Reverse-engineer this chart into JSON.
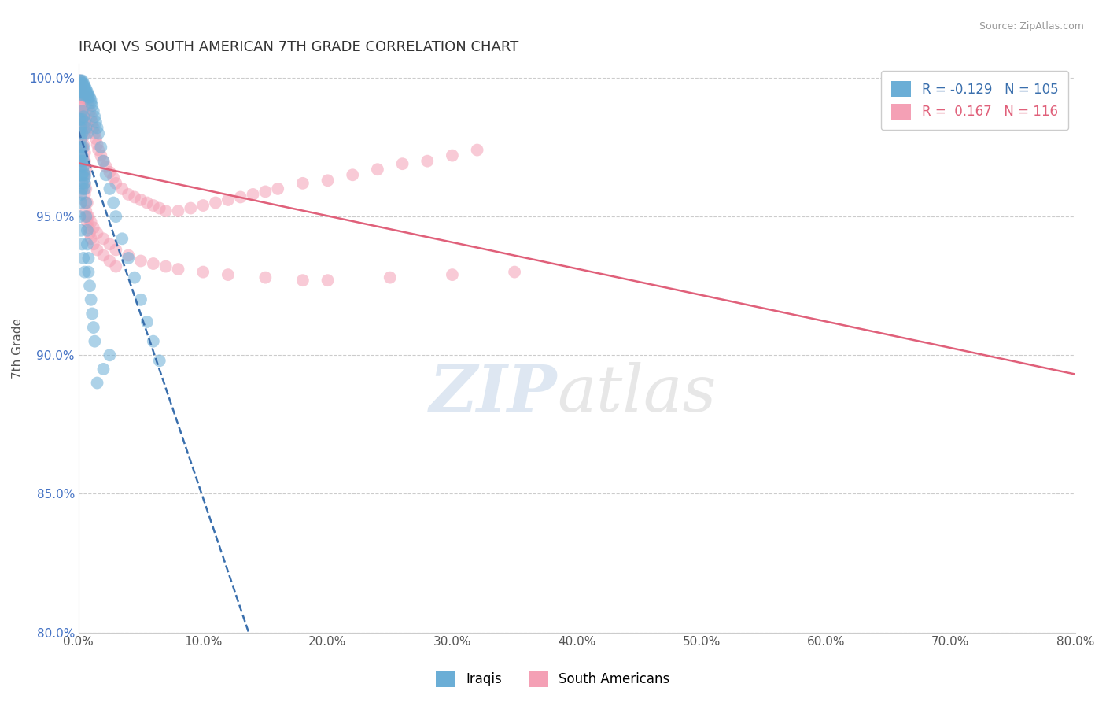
{
  "title": "IRAQI VS SOUTH AMERICAN 7TH GRADE CORRELATION CHART",
  "source_text": "Source: ZipAtlas.com",
  "ylabel": "7th Grade",
  "xlim": [
    0.0,
    0.8
  ],
  "ylim": [
    0.8,
    1.005
  ],
  "xticks": [
    0.0,
    0.1,
    0.2,
    0.3,
    0.4,
    0.5,
    0.6,
    0.7,
    0.8
  ],
  "xticklabels": [
    "0.0%",
    "10.0%",
    "20.0%",
    "30.0%",
    "40.0%",
    "50.0%",
    "60.0%",
    "70.0%",
    "80.0%"
  ],
  "yticks": [
    0.8,
    0.85,
    0.9,
    0.95,
    1.0
  ],
  "yticklabels": [
    "80.0%",
    "85.0%",
    "90.0%",
    "95.0%",
    "100.0%"
  ],
  "blue_color": "#6baed6",
  "pink_color": "#f4a0b5",
  "blue_line_color": "#3a6fad",
  "pink_line_color": "#e0607a",
  "legend_blue_R": "-0.129",
  "legend_blue_N": "105",
  "legend_pink_R": "0.167",
  "legend_pink_N": "116",
  "grid_color": "#cccccc",
  "title_color": "#333333",
  "axis_label_color": "#555555",
  "tick_color": "#555555",
  "ytick_color": "#4472c4",
  "iraqis_x": [
    0.001,
    0.001,
    0.001,
    0.001,
    0.002,
    0.002,
    0.002,
    0.002,
    0.002,
    0.002,
    0.003,
    0.003,
    0.003,
    0.003,
    0.003,
    0.003,
    0.004,
    0.004,
    0.004,
    0.004,
    0.005,
    0.005,
    0.005,
    0.005,
    0.006,
    0.006,
    0.006,
    0.007,
    0.007,
    0.008,
    0.008,
    0.009,
    0.01,
    0.01,
    0.011,
    0.012,
    0.013,
    0.014,
    0.015,
    0.016,
    0.018,
    0.02,
    0.022,
    0.025,
    0.028,
    0.03,
    0.035,
    0.04,
    0.045,
    0.05,
    0.055,
    0.06,
    0.065,
    0.002,
    0.003,
    0.003,
    0.004,
    0.004,
    0.005,
    0.005,
    0.001,
    0.001,
    0.002,
    0.002,
    0.003,
    0.003,
    0.002,
    0.001,
    0.001,
    0.002,
    0.003,
    0.002,
    0.001,
    0.002,
    0.003,
    0.004,
    0.005,
    0.001,
    0.002,
    0.002,
    0.015,
    0.02,
    0.025,
    0.003,
    0.003,
    0.004,
    0.004,
    0.005,
    0.005,
    0.006,
    0.006,
    0.007,
    0.007,
    0.008,
    0.008,
    0.009,
    0.01,
    0.011,
    0.012,
    0.013,
    0.003,
    0.004,
    0.005,
    0.006,
    0.007
  ],
  "iraqis_y": [
    0.999,
    0.998,
    0.997,
    0.996,
    0.999,
    0.998,
    0.997,
    0.996,
    0.995,
    0.994,
    0.999,
    0.998,
    0.997,
    0.996,
    0.995,
    0.994,
    0.998,
    0.997,
    0.996,
    0.995,
    0.997,
    0.996,
    0.995,
    0.994,
    0.996,
    0.995,
    0.994,
    0.995,
    0.994,
    0.994,
    0.993,
    0.993,
    0.992,
    0.991,
    0.99,
    0.988,
    0.986,
    0.984,
    0.982,
    0.98,
    0.975,
    0.97,
    0.965,
    0.96,
    0.955,
    0.95,
    0.942,
    0.935,
    0.928,
    0.92,
    0.912,
    0.905,
    0.898,
    0.975,
    0.972,
    0.97,
    0.968,
    0.966,
    0.964,
    0.962,
    0.98,
    0.975,
    0.972,
    0.968,
    0.965,
    0.96,
    0.955,
    0.972,
    0.97,
    0.965,
    0.962,
    0.958,
    0.95,
    0.945,
    0.94,
    0.935,
    0.93,
    0.985,
    0.982,
    0.978,
    0.89,
    0.895,
    0.9,
    0.985,
    0.98,
    0.975,
    0.97,
    0.965,
    0.96,
    0.955,
    0.95,
    0.945,
    0.94,
    0.935,
    0.93,
    0.925,
    0.92,
    0.915,
    0.91,
    0.905,
    0.988,
    0.986,
    0.984,
    0.982,
    0.98
  ],
  "south_x": [
    0.001,
    0.001,
    0.001,
    0.002,
    0.002,
    0.002,
    0.003,
    0.003,
    0.003,
    0.004,
    0.004,
    0.004,
    0.005,
    0.005,
    0.005,
    0.006,
    0.006,
    0.007,
    0.007,
    0.008,
    0.008,
    0.009,
    0.01,
    0.011,
    0.012,
    0.013,
    0.014,
    0.015,
    0.016,
    0.018,
    0.02,
    0.022,
    0.025,
    0.028,
    0.03,
    0.035,
    0.04,
    0.045,
    0.05,
    0.055,
    0.06,
    0.065,
    0.07,
    0.08,
    0.09,
    0.1,
    0.11,
    0.12,
    0.13,
    0.14,
    0.15,
    0.16,
    0.18,
    0.2,
    0.22,
    0.24,
    0.26,
    0.28,
    0.3,
    0.32,
    0.003,
    0.003,
    0.004,
    0.004,
    0.005,
    0.005,
    0.006,
    0.006,
    0.007,
    0.007,
    0.008,
    0.009,
    0.01,
    0.012,
    0.015,
    0.02,
    0.025,
    0.03,
    0.001,
    0.002,
    0.003,
    0.002,
    0.002,
    0.003,
    0.003,
    0.004,
    0.004,
    0.005,
    0.005,
    0.006,
    0.002,
    0.003,
    0.004,
    0.005,
    0.006,
    0.007,
    0.008,
    0.01,
    0.012,
    0.015,
    0.02,
    0.025,
    0.03,
    0.04,
    0.05,
    0.06,
    0.07,
    0.08,
    0.1,
    0.12,
    0.15,
    0.18,
    0.2,
    0.25,
    0.3,
    0.35
  ],
  "south_y": [
    0.999,
    0.995,
    0.99,
    0.998,
    0.993,
    0.988,
    0.997,
    0.992,
    0.985,
    0.995,
    0.988,
    0.982,
    0.994,
    0.987,
    0.98,
    0.993,
    0.985,
    0.992,
    0.983,
    0.99,
    0.982,
    0.988,
    0.986,
    0.984,
    0.982,
    0.98,
    0.978,
    0.976,
    0.974,
    0.972,
    0.97,
    0.968,
    0.966,
    0.964,
    0.962,
    0.96,
    0.958,
    0.957,
    0.956,
    0.955,
    0.954,
    0.953,
    0.952,
    0.952,
    0.953,
    0.954,
    0.955,
    0.956,
    0.957,
    0.958,
    0.959,
    0.96,
    0.962,
    0.963,
    0.965,
    0.967,
    0.969,
    0.97,
    0.972,
    0.974,
    0.975,
    0.97,
    0.968,
    0.965,
    0.962,
    0.958,
    0.955,
    0.952,
    0.95,
    0.948,
    0.946,
    0.944,
    0.942,
    0.94,
    0.938,
    0.936,
    0.934,
    0.932,
    0.999,
    0.996,
    0.993,
    0.99,
    0.988,
    0.985,
    0.982,
    0.979,
    0.976,
    0.973,
    0.97,
    0.967,
    0.98,
    0.975,
    0.97,
    0.965,
    0.96,
    0.955,
    0.95,
    0.948,
    0.946,
    0.944,
    0.942,
    0.94,
    0.938,
    0.936,
    0.934,
    0.933,
    0.932,
    0.931,
    0.93,
    0.929,
    0.928,
    0.927,
    0.927,
    0.928,
    0.929,
    0.93
  ]
}
